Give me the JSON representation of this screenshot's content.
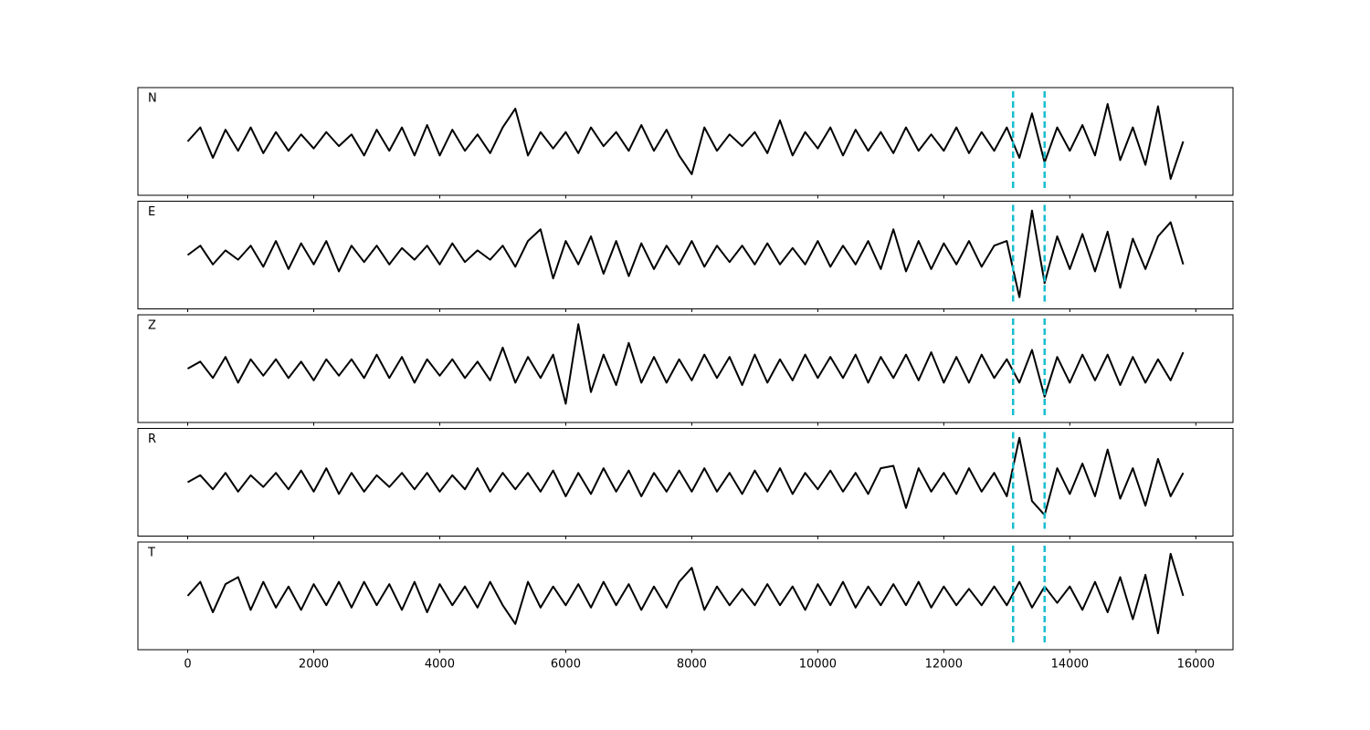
{
  "chart_data": {
    "type": "line",
    "x": [
      0,
      200,
      400,
      600,
      800,
      1000,
      1200,
      1400,
      1600,
      1800,
      2000,
      2200,
      2400,
      2600,
      2800,
      3000,
      3200,
      3400,
      3600,
      3800,
      4000,
      4200,
      4400,
      4600,
      4800,
      5000,
      5200,
      5400,
      5600,
      5800,
      6000,
      6200,
      6400,
      6600,
      6800,
      7000,
      7200,
      7400,
      7600,
      7800,
      8000,
      8200,
      8400,
      8600,
      8800,
      9000,
      9200,
      9400,
      9600,
      9800,
      10000,
      10200,
      10400,
      10600,
      10800,
      11000,
      11200,
      11400,
      11600,
      11800,
      12000,
      12200,
      12400,
      12600,
      12800,
      13000,
      13200,
      13400,
      13600,
      13800,
      14000,
      14200,
      14400,
      14600,
      14800,
      15000,
      15200,
      15400,
      15600,
      15800
    ],
    "series": [
      {
        "name": "N",
        "color": "#000000",
        "values": [
          0,
          0.3,
          -0.35,
          0.25,
          -0.2,
          0.3,
          -0.25,
          0.2,
          -0.2,
          0.15,
          -0.15,
          0.2,
          -0.1,
          0.15,
          -0.3,
          0.25,
          -0.2,
          0.3,
          -0.3,
          0.35,
          -0.3,
          0.25,
          -0.2,
          0.15,
          -0.25,
          0.3,
          0.7,
          -0.3,
          0.2,
          -0.15,
          0.2,
          -0.25,
          0.3,
          -0.1,
          0.2,
          -0.2,
          0.35,
          -0.2,
          0.25,
          -0.3,
          -0.7,
          0.3,
          -0.2,
          0.15,
          -0.1,
          0.2,
          -0.25,
          0.45,
          -0.3,
          0.2,
          -0.15,
          0.3,
          -0.3,
          0.25,
          -0.2,
          0.2,
          -0.25,
          0.3,
          -0.2,
          0.15,
          -0.2,
          0.3,
          -0.25,
          0.2,
          -0.2,
          0.3,
          -0.35,
          0.6,
          -0.45,
          0.3,
          -0.2,
          0.35,
          -0.3,
          0.8,
          -0.4,
          0.3,
          -0.5,
          0.75,
          -0.8,
          0
        ]
      },
      {
        "name": "E",
        "color": "#000000",
        "values": [
          0,
          0.2,
          -0.2,
          0.1,
          -0.1,
          0.2,
          -0.25,
          0.3,
          -0.3,
          0.25,
          -0.2,
          0.3,
          -0.35,
          0.2,
          -0.15,
          0.2,
          -0.2,
          0.15,
          -0.1,
          0.2,
          -0.2,
          0.25,
          -0.15,
          0.1,
          -0.1,
          0.2,
          -0.25,
          0.3,
          0.55,
          -0.5,
          0.3,
          -0.2,
          0.4,
          -0.4,
          0.3,
          -0.45,
          0.25,
          -0.3,
          0.2,
          -0.2,
          0.3,
          -0.25,
          0.2,
          -0.15,
          0.2,
          -0.2,
          0.25,
          -0.2,
          0.15,
          -0.2,
          0.3,
          -0.25,
          0.2,
          -0.2,
          0.3,
          -0.3,
          0.55,
          -0.35,
          0.3,
          -0.3,
          0.25,
          -0.2,
          0.3,
          -0.25,
          0.2,
          0.3,
          -0.9,
          0.95,
          -0.6,
          0.4,
          -0.3,
          0.45,
          -0.35,
          0.5,
          -0.7,
          0.35,
          -0.3,
          0.4,
          0.7,
          -0.2
        ]
      },
      {
        "name": "Z",
        "color": "#000000",
        "values": [
          0,
          0.15,
          -0.2,
          0.25,
          -0.3,
          0.2,
          -0.15,
          0.2,
          -0.2,
          0.15,
          -0.25,
          0.2,
          -0.15,
          0.2,
          -0.2,
          0.3,
          -0.2,
          0.25,
          -0.3,
          0.2,
          -0.15,
          0.2,
          -0.2,
          0.15,
          -0.25,
          0.45,
          -0.3,
          0.25,
          -0.2,
          0.3,
          -0.75,
          0.95,
          -0.5,
          0.3,
          -0.35,
          0.55,
          -0.3,
          0.25,
          -0.3,
          0.2,
          -0.25,
          0.3,
          -0.2,
          0.25,
          -0.35,
          0.3,
          -0.3,
          0.2,
          -0.25,
          0.3,
          -0.2,
          0.25,
          -0.2,
          0.3,
          -0.3,
          0.25,
          -0.2,
          0.3,
          -0.25,
          0.35,
          -0.3,
          0.25,
          -0.3,
          0.3,
          -0.2,
          0.2,
          -0.3,
          0.4,
          -0.6,
          0.25,
          -0.3,
          0.3,
          -0.25,
          0.3,
          -0.35,
          0.25,
          -0.3,
          0.2,
          -0.25,
          0.35
        ]
      },
      {
        "name": "R",
        "color": "#000000",
        "values": [
          0,
          0.15,
          -0.15,
          0.2,
          -0.2,
          0.15,
          -0.1,
          0.2,
          -0.15,
          0.25,
          -0.2,
          0.3,
          -0.25,
          0.2,
          -0.2,
          0.15,
          -0.1,
          0.2,
          -0.15,
          0.2,
          -0.2,
          0.15,
          -0.15,
          0.3,
          -0.2,
          0.2,
          -0.15,
          0.2,
          -0.2,
          0.25,
          -0.3,
          0.2,
          -0.25,
          0.3,
          -0.2,
          0.25,
          -0.3,
          0.2,
          -0.2,
          0.25,
          -0.2,
          0.3,
          -0.2,
          0.2,
          -0.25,
          0.25,
          -0.2,
          0.3,
          -0.25,
          0.2,
          -0.15,
          0.25,
          -0.2,
          0.2,
          -0.25,
          0.3,
          0.35,
          -0.55,
          0.3,
          -0.2,
          0.2,
          -0.25,
          0.3,
          -0.2,
          0.2,
          -0.3,
          0.95,
          -0.4,
          -0.7,
          0.3,
          -0.25,
          0.4,
          -0.3,
          0.7,
          -0.35,
          0.3,
          -0.5,
          0.5,
          -0.3,
          0.2
        ]
      },
      {
        "name": "T",
        "color": "#000000",
        "values": [
          0,
          0.3,
          -0.35,
          0.25,
          0.4,
          -0.3,
          0.3,
          -0.25,
          0.2,
          -0.3,
          0.25,
          -0.2,
          0.3,
          -0.25,
          0.3,
          -0.2,
          0.25,
          -0.3,
          0.3,
          -0.35,
          0.25,
          -0.2,
          0.2,
          -0.25,
          0.3,
          -0.2,
          -0.6,
          0.3,
          -0.25,
          0.2,
          -0.2,
          0.25,
          -0.25,
          0.3,
          -0.2,
          0.25,
          -0.3,
          0.2,
          -0.25,
          0.3,
          0.6,
          -0.3,
          0.2,
          -0.2,
          0.15,
          -0.2,
          0.25,
          -0.2,
          0.2,
          -0.3,
          0.25,
          -0.2,
          0.3,
          -0.25,
          0.2,
          -0.2,
          0.25,
          -0.2,
          0.3,
          -0.25,
          0.2,
          -0.2,
          0.15,
          -0.2,
          0.2,
          -0.2,
          0.3,
          -0.25,
          0.2,
          -0.15,
          0.2,
          -0.3,
          0.3,
          -0.35,
          0.4,
          -0.5,
          0.45,
          -0.8,
          0.9,
          0
        ]
      }
    ],
    "xlim": [
      -790,
      16590
    ],
    "xticks": [
      0,
      2000,
      4000,
      6000,
      8000,
      10000,
      12000,
      14000,
      16000
    ],
    "ylim": [
      -1.15,
      1.15
    ],
    "markers": [
      13100,
      13600
    ],
    "marker_color": "#17becf"
  }
}
